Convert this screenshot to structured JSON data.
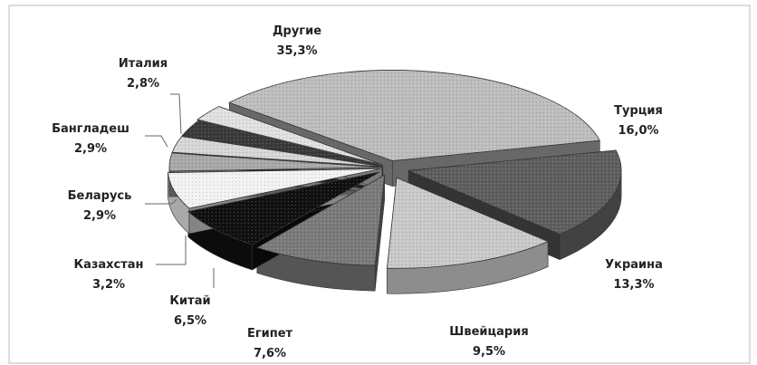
{
  "chart_data": {
    "type": "pie",
    "title": "",
    "slices": [
      {
        "name": "Другие",
        "value": 35.3,
        "label": "35,3%",
        "color": "#bdbdbd"
      },
      {
        "name": "Турция",
        "value": 16.0,
        "label": "16,0%",
        "color": "#5e5e5e"
      },
      {
        "name": "Украина",
        "value": 13.3,
        "label": "13,3%",
        "color": "#c9c9c9"
      },
      {
        "name": "Швейцария",
        "value": 9.5,
        "label": "9,5%",
        "color": "#7a7a7a"
      },
      {
        "name": "Египет",
        "value": 7.6,
        "label": "7,6%",
        "color": "#111111"
      },
      {
        "name": "Китай",
        "value": 6.5,
        "label": "6,5%",
        "color": "#f2f2f2"
      },
      {
        "name": "Казахстан",
        "value": 3.2,
        "label": "3,2%",
        "color": "#a8a8a8"
      },
      {
        "name": "Беларусь",
        "value": 2.9,
        "label": "2,9%",
        "color": "#d6d6d6"
      },
      {
        "name": "Бангладеш",
        "value": 2.9,
        "label": "2,9%",
        "color": "#3a3a3a"
      },
      {
        "name": "Италия",
        "value": 2.8,
        "label": "2,8%",
        "color": "#e0e0e0"
      }
    ],
    "legend": "none",
    "style": "3d-exploded"
  }
}
